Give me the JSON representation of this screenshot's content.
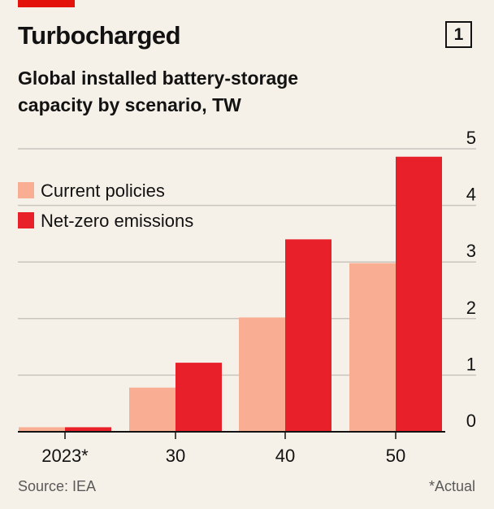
{
  "header": {
    "title": "Turbocharged",
    "chart_number": "1",
    "subtitle_lines": [
      "Global installed battery-storage",
      "capacity by scenario, TW"
    ]
  },
  "footer": {
    "source": "Source: IEA",
    "footnote": "*Actual"
  },
  "colors": {
    "background": "#f6f1e8",
    "brand_red": "#e3120b",
    "current_policies": "#f9ae93",
    "net_zero": "#e8202a",
    "gridline": "#c9c4bd",
    "axis": "#121212",
    "text": "#121212",
    "muted_text": "#595959"
  },
  "chart_data": {
    "type": "bar",
    "title": "Global installed battery-storage capacity by scenario, TW",
    "xlabel": "",
    "ylabel": "TW",
    "categories": [
      "2023*",
      "30",
      "40",
      "50"
    ],
    "series": [
      {
        "name": "Current policies",
        "color": "#f9ae93",
        "values": [
          0.08,
          0.78,
          2.02,
          2.98
        ]
      },
      {
        "name": "Net-zero emissions",
        "color": "#e8202a",
        "values": [
          0.08,
          1.22,
          3.4,
          4.86
        ]
      }
    ],
    "ylim": [
      0,
      5
    ],
    "yticks": [
      "0",
      "1",
      "2",
      "3",
      "4",
      "5"
    ],
    "grid": true,
    "legend_position": "top-left"
  }
}
